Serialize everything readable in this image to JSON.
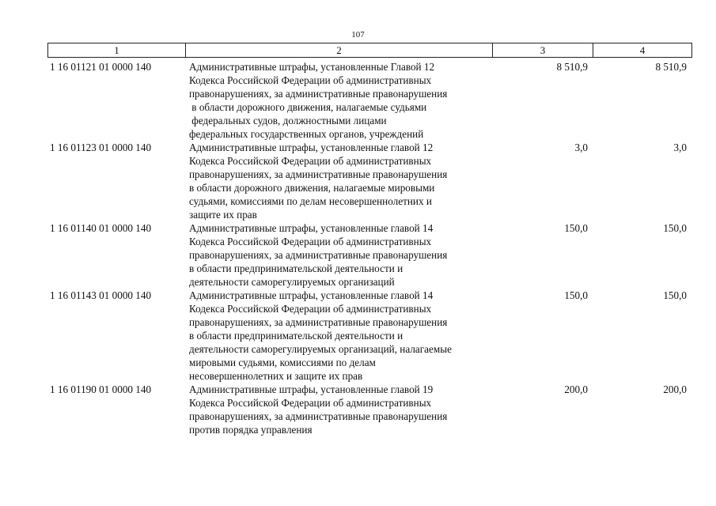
{
  "page_number": "107",
  "header": [
    "1",
    "2",
    "3",
    "4"
  ],
  "rows": [
    {
      "code": "1 16 01121 01 0000 140",
      "lines": [
        "Административные штрафы, установленные Главой 12",
        "Кодекса Российской Федерации об административных",
        "правонарушениях, за административные правонарушения",
        " в области дорожного движения, налагаемые судьями",
        " федеральных судов, должностными лицами",
        "федеральных государственных органов, учреждений"
      ],
      "col3": "8 510,9",
      "col4": "8 510,9"
    },
    {
      "code": "1 16 01123 01 0000 140",
      "lines": [
        "Административные штрафы, установленные главой 12",
        "Кодекса Российской Федерации об административных",
        "правонарушениях, за административные правонарушения",
        "в области дорожного движения, налагаемые мировыми",
        "судьями, комиссиями по делам несовершеннолетних и",
        "защите их прав"
      ],
      "col3": "3,0",
      "col4": "3,0"
    },
    {
      "code": "1 16 01140 01 0000 140",
      "lines": [
        "Административные штрафы, установленные главой 14",
        "Кодекса Российской Федерации об административных",
        "правонарушениях, за административные правонарушения",
        "в области предпринимательской деятельности и",
        "деятельности саморегулируемых организаций"
      ],
      "col3": "150,0",
      "col4": "150,0"
    },
    {
      "code": "1 16 01143 01 0000 140",
      "lines": [
        "Административные штрафы, установленные главой 14",
        "Кодекса Российской Федерации об административных",
        "правонарушениях, за административные правонарушения",
        "в области предпринимательской деятельности и",
        "деятельности саморегулируемых организаций, налагаемые",
        "мировыми судьями, комиссиями по делам",
        "несовершеннолетних и защите их прав"
      ],
      "col3": "150,0",
      "col4": "150,0"
    },
    {
      "code": "1 16 01190 01 0000 140",
      "lines": [
        "Административные штрафы, установленные главой 19",
        "Кодекса Российской Федерации об административных",
        "правонарушениях, за административные правонарушения",
        "против порядка управления"
      ],
      "col3": "200,0",
      "col4": "200,0"
    }
  ]
}
